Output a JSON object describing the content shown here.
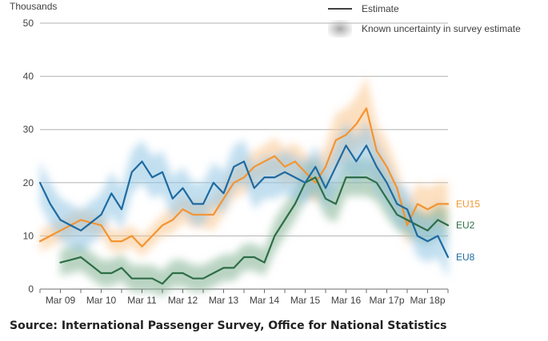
{
  "chart_data": {
    "type": "line",
    "title": "",
    "ylabel": "Thousands",
    "xlabel": "",
    "ylim": [
      0,
      50
    ],
    "yticks": [
      0,
      10,
      20,
      30,
      40,
      50
    ],
    "xlim": [
      0,
      20
    ],
    "categories": [
      "Mar 09",
      "Mar 10",
      "Mar 11",
      "Mar 12",
      "Mar 13",
      "Mar 14",
      "Mar 15",
      "Mar 16",
      "Mar 17p",
      "Mar 18p"
    ],
    "category_positions": [
      1,
      3,
      5,
      7,
      9,
      11,
      13,
      15,
      17,
      19
    ],
    "legend": {
      "estimate": "Estimate",
      "uncertainty": "Known uncertainty in survey estimate"
    },
    "series": [
      {
        "name": "EU15",
        "color": "#f39431",
        "band_color": "#f9c48a",
        "x": [
          0,
          0.5,
          1,
          1.5,
          2,
          2.5,
          3,
          3.5,
          4,
          4.5,
          5,
          5.5,
          6,
          6.5,
          7,
          7.5,
          8,
          8.5,
          9,
          9.5,
          10,
          10.5,
          11,
          11.5,
          12,
          12.5,
          13,
          13.5,
          14,
          14.5,
          15,
          15.5,
          16,
          16.5,
          17,
          17.5,
          18,
          18.5,
          19,
          19.5,
          20
        ],
        "values": [
          9,
          10,
          11,
          12,
          13,
          12.5,
          12,
          9,
          9,
          10,
          8,
          10,
          12,
          13,
          15,
          14,
          14,
          14,
          17,
          20,
          21,
          23,
          24,
          25,
          23,
          24,
          22,
          20,
          23,
          28,
          29,
          31,
          34,
          26,
          23,
          19,
          12,
          16,
          15,
          16,
          16
        ],
        "uncertainty": [
          2,
          2,
          2,
          2,
          2,
          2,
          2,
          2,
          2,
          2,
          2,
          2,
          2,
          2.5,
          2.5,
          2.5,
          2.5,
          3,
          3,
          3,
          3,
          3,
          3,
          3.5,
          3.5,
          3.5,
          3.5,
          4,
          4,
          5,
          5,
          5,
          6,
          5,
          5,
          4,
          4,
          4,
          4,
          4,
          4
        ]
      },
      {
        "name": "EU2",
        "color": "#2e6e47",
        "band_color": "#7fb18f",
        "x": [
          1,
          1.5,
          2,
          2.5,
          3,
          3.5,
          4,
          4.5,
          5,
          5.5,
          6,
          6.5,
          7,
          7.5,
          8,
          8.5,
          9,
          9.5,
          10,
          10.5,
          11,
          11.5,
          12,
          12.5,
          13,
          13.5,
          14,
          14.5,
          15,
          15.5,
          16,
          16.5,
          17,
          17.5,
          18,
          18.5,
          19,
          19.5,
          20
        ],
        "values": [
          5,
          5.5,
          6,
          4.5,
          3,
          3,
          4,
          2,
          2,
          2,
          1,
          3,
          3,
          2,
          2,
          3,
          4,
          4,
          6,
          6,
          5,
          10,
          13,
          16,
          20,
          21,
          17,
          16,
          21,
          21,
          21,
          20,
          17,
          14,
          13,
          12,
          11,
          13,
          12
        ],
        "uncertainty": [
          2.5,
          2.5,
          2.5,
          2.5,
          2.5,
          2.5,
          2.5,
          2.5,
          2.5,
          2.5,
          2.5,
          2.5,
          2.5,
          2.5,
          2.5,
          2.5,
          2.5,
          2.5,
          2.5,
          2.5,
          2.5,
          3,
          3,
          3,
          3.5,
          3.5,
          3.5,
          3.5,
          3.5,
          3.5,
          3.5,
          3.5,
          3.5,
          3,
          3,
          3,
          3,
          3,
          3
        ]
      },
      {
        "name": "EU8",
        "color": "#1f6aa0",
        "band_color": "#8fc4e3",
        "x": [
          0,
          0.5,
          1,
          1.5,
          2,
          2.5,
          3,
          3.5,
          4,
          4.5,
          5,
          5.5,
          6,
          6.5,
          7,
          7.5,
          8,
          8.5,
          9,
          9.5,
          10,
          10.5,
          11,
          11.5,
          12,
          12.5,
          13,
          13.5,
          14,
          14.5,
          15,
          15.5,
          16,
          16.5,
          17,
          17.5,
          18,
          18.5,
          19,
          19.5,
          20
        ],
        "values": [
          20,
          16,
          13,
          12,
          11,
          12.5,
          14,
          18,
          15,
          22,
          24,
          21,
          22,
          17,
          19,
          16,
          16,
          20,
          18,
          23,
          24,
          19,
          21,
          21,
          22,
          21,
          20,
          23,
          19,
          23,
          27,
          24,
          27,
          23,
          20,
          16,
          15,
          10,
          9,
          10,
          6
        ],
        "uncertainty": [
          4,
          4,
          4,
          4,
          4,
          4,
          4,
          4,
          4,
          4,
          4,
          4,
          4,
          4,
          4,
          4,
          4,
          4,
          4,
          4,
          4,
          4,
          4,
          4,
          4,
          4,
          4,
          4,
          4,
          4.5,
          4.5,
          4.5,
          4.5,
          4.5,
          4,
          4,
          4,
          4,
          4,
          4,
          4
        ]
      }
    ]
  },
  "source": "Source: International Passenger Survey, Office for National Statistics"
}
